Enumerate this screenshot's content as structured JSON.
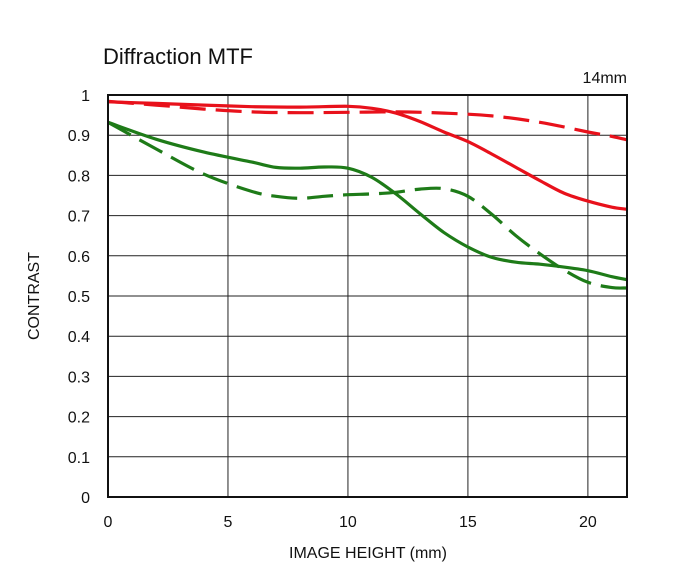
{
  "chart_data": {
    "type": "line",
    "title": "Diffraction MTF",
    "annotation": "14mm",
    "xlabel": "IMAGE HEIGHT (mm)",
    "ylabel": "CONTRAST",
    "xlim": [
      0,
      21.63
    ],
    "ylim": [
      0,
      1
    ],
    "x_ticks": [
      0,
      5,
      10,
      15,
      20
    ],
    "x_tick_labels": [
      "0",
      "5",
      "10",
      "15",
      "20"
    ],
    "y_ticks": [
      0,
      0.1,
      0.2,
      0.3,
      0.4,
      0.5,
      0.6,
      0.7,
      0.8,
      0.9,
      1
    ],
    "y_tick_labels": [
      "0",
      "0.1",
      "0.2",
      "0.3",
      "0.4",
      "0.5",
      "0.6",
      "0.7",
      "0.8",
      "0.9",
      "1"
    ],
    "grid": true,
    "legend": "none",
    "series": [
      {
        "color": "#e8111b",
        "style": "solid",
        "points": [
          [
            0,
            0.983
          ],
          [
            2,
            0.979
          ],
          [
            4,
            0.975
          ],
          [
            6,
            0.971
          ],
          [
            8,
            0.97
          ],
          [
            10,
            0.972
          ],
          [
            11,
            0.967
          ],
          [
            12,
            0.955
          ],
          [
            13,
            0.934
          ],
          [
            14,
            0.908
          ],
          [
            15,
            0.884
          ],
          [
            16,
            0.853
          ],
          [
            17,
            0.82
          ],
          [
            18,
            0.787
          ],
          [
            19,
            0.756
          ],
          [
            20,
            0.736
          ],
          [
            21,
            0.721
          ],
          [
            21.6,
            0.716
          ]
        ]
      },
      {
        "color": "#e8111b",
        "style": "dashed",
        "points": [
          [
            0,
            0.984
          ],
          [
            2,
            0.975
          ],
          [
            4,
            0.965
          ],
          [
            6,
            0.958
          ],
          [
            8,
            0.956
          ],
          [
            10,
            0.957
          ],
          [
            12,
            0.958
          ],
          [
            14,
            0.955
          ],
          [
            16,
            0.948
          ],
          [
            18,
            0.932
          ],
          [
            20,
            0.908
          ],
          [
            21,
            0.897
          ],
          [
            21.6,
            0.889
          ]
        ]
      },
      {
        "color": "#1e7b18",
        "style": "solid",
        "points": [
          [
            0,
            0.932
          ],
          [
            2,
            0.89
          ],
          [
            4,
            0.858
          ],
          [
            6,
            0.833
          ],
          [
            7,
            0.82
          ],
          [
            8,
            0.818
          ],
          [
            9,
            0.821
          ],
          [
            10,
            0.818
          ],
          [
            11,
            0.795
          ],
          [
            12,
            0.754
          ],
          [
            13,
            0.705
          ],
          [
            14,
            0.658
          ],
          [
            15,
            0.622
          ],
          [
            16,
            0.596
          ],
          [
            17,
            0.584
          ],
          [
            18,
            0.579
          ],
          [
            19,
            0.572
          ],
          [
            20,
            0.563
          ],
          [
            21,
            0.548
          ],
          [
            21.6,
            0.541
          ]
        ]
      },
      {
        "color": "#1e7b18",
        "style": "dashed",
        "points": [
          [
            0,
            0.932
          ],
          [
            2,
            0.866
          ],
          [
            4,
            0.803
          ],
          [
            6,
            0.76
          ],
          [
            7,
            0.748
          ],
          [
            8,
            0.743
          ],
          [
            9,
            0.748
          ],
          [
            10,
            0.752
          ],
          [
            11,
            0.754
          ],
          [
            12,
            0.758
          ],
          [
            13,
            0.766
          ],
          [
            14,
            0.767
          ],
          [
            15,
            0.748
          ],
          [
            16,
            0.703
          ],
          [
            17,
            0.65
          ],
          [
            18,
            0.605
          ],
          [
            19,
            0.565
          ],
          [
            20,
            0.534
          ],
          [
            21,
            0.521
          ],
          [
            21.6,
            0.52
          ]
        ]
      }
    ]
  }
}
